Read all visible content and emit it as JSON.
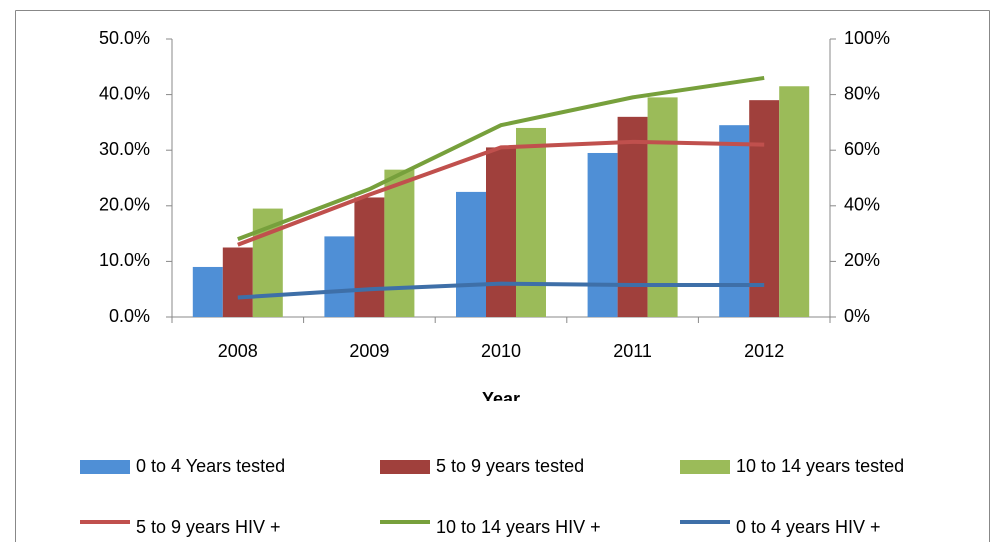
{
  "chart_data": {
    "type": "combo",
    "x_label": "Year",
    "categories": [
      "2008",
      "2009",
      "2010",
      "2011",
      "2012"
    ],
    "series": [
      {
        "name": "0 to 4 Years tested",
        "type": "bar",
        "color": "#4f8fd6",
        "values": [
          9.0,
          14.5,
          22.5,
          29.5,
          34.5
        ]
      },
      {
        "name": "5 to 9 years tested",
        "type": "bar",
        "color": "#a0403c",
        "values": [
          12.5,
          21.5,
          30.5,
          36.0,
          39.0
        ]
      },
      {
        "name": "10 to 14 years tested",
        "type": "bar",
        "color": "#9bbb59",
        "values": [
          19.5,
          26.5,
          34.0,
          39.5,
          41.5
        ]
      },
      {
        "name": "5 to 9 years HIV +",
        "type": "line",
        "axis": "y2",
        "color": "#c0504d",
        "values": [
          26,
          44,
          61,
          63,
          62
        ]
      },
      {
        "name": "10 to 14 years HIV +",
        "type": "line",
        "axis": "y2",
        "color": "#77a03c",
        "values": [
          28,
          46,
          69,
          79,
          86
        ]
      },
      {
        "name": "0 to 4 years HIV +",
        "type": "line",
        "axis": "y2",
        "color": "#3e6fa8",
        "values": [
          7,
          10,
          12,
          11.5,
          11.5
        ]
      }
    ],
    "ylim": [
      0,
      50
    ],
    "yticks": [
      {
        "value": 0,
        "label": "0.0%"
      },
      {
        "value": 10,
        "label": "10.0%"
      },
      {
        "value": 20,
        "label": "20.0%"
      },
      {
        "value": 30,
        "label": "30.0%"
      },
      {
        "value": 40,
        "label": "40.0%"
      },
      {
        "value": 50,
        "label": "50.0%"
      }
    ],
    "y2lim": [
      0,
      100
    ],
    "y2ticks": [
      {
        "value": 0,
        "label": "0%"
      },
      {
        "value": 20,
        "label": "20%"
      },
      {
        "value": 40,
        "label": "40%"
      },
      {
        "value": 60,
        "label": "60%"
      },
      {
        "value": 80,
        "label": "80%"
      },
      {
        "value": 100,
        "label": "100%"
      }
    ],
    "legend": "bottom"
  }
}
